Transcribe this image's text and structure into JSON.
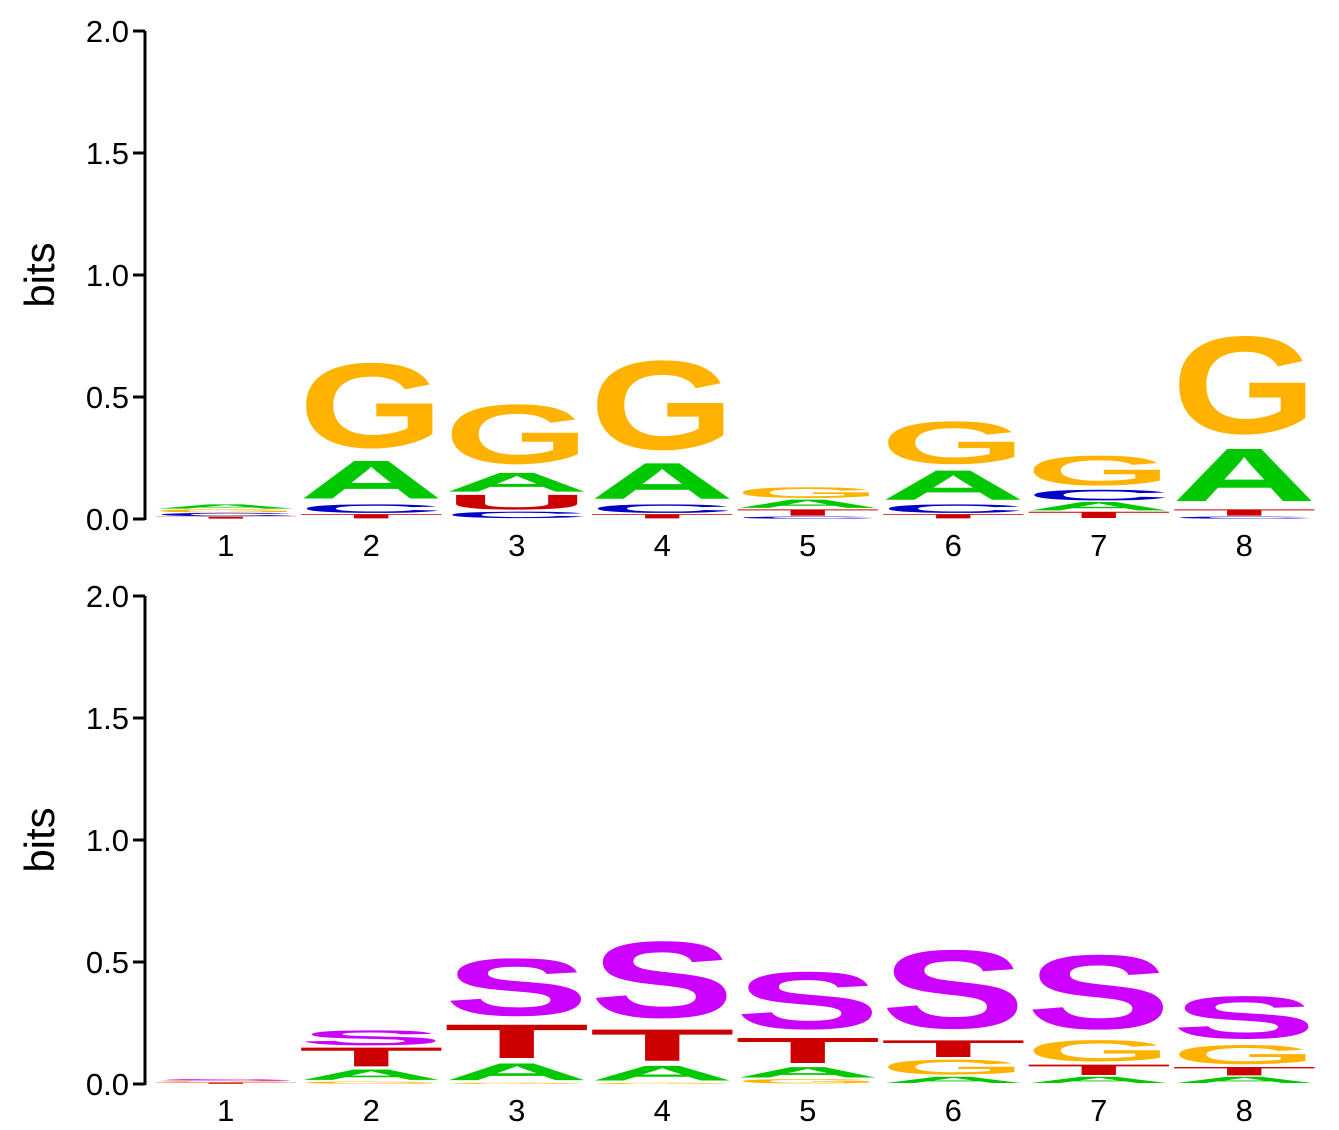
{
  "colors": {
    "A": "#00c800",
    "C": "#0000c8",
    "G": "#ffb300",
    "T": "#cc0000",
    "U": "#cc0000",
    "S": "#cc00ff",
    "axis": "#000000"
  },
  "chart_data": [
    {
      "type": "sequence-logo",
      "ylabel": "bits",
      "ylim": [
        0,
        2.0
      ],
      "yticks": [
        "0.0",
        "0.5",
        "1.0",
        "1.5",
        "2.0"
      ],
      "positions": [
        "1",
        "2",
        "3",
        "4",
        "5",
        "6",
        "7",
        "8"
      ],
      "stacks": [
        [
          {
            "letter": "T",
            "bits": 0.01
          },
          {
            "letter": "C",
            "bits": 0.015
          },
          {
            "letter": "G",
            "bits": 0.015
          },
          {
            "letter": "A",
            "bits": 0.02
          }
        ],
        [
          {
            "letter": "T",
            "bits": 0.02
          },
          {
            "letter": "C",
            "bits": 0.04
          },
          {
            "letter": "A",
            "bits": 0.18
          },
          {
            "letter": "G",
            "bits": 0.4
          }
        ],
        [
          {
            "letter": "C",
            "bits": 0.03
          },
          {
            "letter": "U",
            "bits": 0.07
          },
          {
            "letter": "A",
            "bits": 0.09
          },
          {
            "letter": "G",
            "bits": 0.28
          }
        ],
        [
          {
            "letter": "T",
            "bits": 0.02
          },
          {
            "letter": "C",
            "bits": 0.04
          },
          {
            "letter": "A",
            "bits": 0.17
          },
          {
            "letter": "G",
            "bits": 0.42
          }
        ],
        [
          {
            "letter": "C",
            "bits": 0.01
          },
          {
            "letter": "T",
            "bits": 0.03
          },
          {
            "letter": "A",
            "bits": 0.04
          },
          {
            "letter": "G",
            "bits": 0.05
          }
        ],
        [
          {
            "letter": "T",
            "bits": 0.02
          },
          {
            "letter": "C",
            "bits": 0.04
          },
          {
            "letter": "A",
            "bits": 0.14
          },
          {
            "letter": "G",
            "bits": 0.2
          }
        ],
        [
          {
            "letter": "T",
            "bits": 0.03
          },
          {
            "letter": "A",
            "bits": 0.04
          },
          {
            "letter": "C",
            "bits": 0.05
          },
          {
            "letter": "G",
            "bits": 0.14
          }
        ],
        [
          {
            "letter": "C",
            "bits": 0.01
          },
          {
            "letter": "T",
            "bits": 0.03
          },
          {
            "letter": "A",
            "bits": 0.25
          },
          {
            "letter": "G",
            "bits": 0.46
          }
        ]
      ]
    },
    {
      "type": "sequence-logo",
      "ylabel": "bits",
      "ylim": [
        0,
        2.0
      ],
      "yticks": [
        "0.0",
        "0.5",
        "1.0",
        "1.5",
        "2.0"
      ],
      "positions": [
        "1",
        "2",
        "3",
        "4",
        "5",
        "6",
        "7",
        "8"
      ],
      "stacks": [
        [
          {
            "letter": "T",
            "bits": 0.006
          },
          {
            "letter": "G",
            "bits": 0.006
          },
          {
            "letter": "S",
            "bits": 0.008
          }
        ],
        [
          {
            "letter": "G",
            "bits": 0.01
          },
          {
            "letter": "A",
            "bits": 0.05
          },
          {
            "letter": "T",
            "bits": 0.09
          },
          {
            "letter": "S",
            "bits": 0.07
          }
        ],
        [
          {
            "letter": "G",
            "bits": 0.005
          },
          {
            "letter": "A",
            "bits": 0.08
          },
          {
            "letter": "T",
            "bits": 0.16
          },
          {
            "letter": "S",
            "bits": 0.27
          }
        ],
        [
          {
            "letter": "G",
            "bits": 0.005
          },
          {
            "letter": "A",
            "bits": 0.07
          },
          {
            "letter": "T",
            "bits": 0.15
          },
          {
            "letter": "S",
            "bits": 0.36
          }
        ],
        [
          {
            "letter": "G",
            "bits": 0.02
          },
          {
            "letter": "A",
            "bits": 0.05
          },
          {
            "letter": "T",
            "bits": 0.12
          },
          {
            "letter": "S",
            "bits": 0.27
          }
        ],
        [
          {
            "letter": "A",
            "bits": 0.03
          },
          {
            "letter": "G",
            "bits": 0.07
          },
          {
            "letter": "T",
            "bits": 0.08
          },
          {
            "letter": "S",
            "bits": 0.37
          }
        ],
        [
          {
            "letter": "A",
            "bits": 0.03
          },
          {
            "letter": "T",
            "bits": 0.05
          },
          {
            "letter": "G",
            "bits": 0.1
          },
          {
            "letter": "S",
            "bits": 0.35
          }
        ],
        [
          {
            "letter": "A",
            "bits": 0.03
          },
          {
            "letter": "T",
            "bits": 0.04
          },
          {
            "letter": "G",
            "bits": 0.09
          },
          {
            "letter": "S",
            "bits": 0.2
          }
        ]
      ]
    }
  ]
}
